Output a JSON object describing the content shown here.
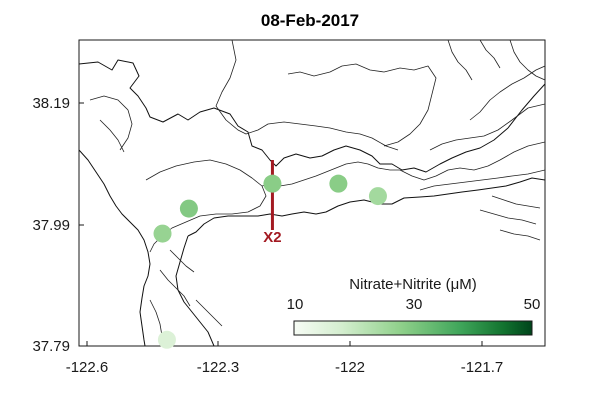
{
  "title": "08-Feb-2017",
  "x_axis": {
    "ticks": [
      "-122.6",
      "-122.3",
      "-122",
      "-121.7"
    ]
  },
  "y_axis": {
    "ticks": [
      "38.19",
      "37.99",
      "37.79"
    ]
  },
  "x2_marker": {
    "label": "X2",
    "lon": -122.19,
    "color": "#a31a22"
  },
  "colorbar": {
    "title": "Nitrate+Nitrite (μM)",
    "min": 5,
    "max": 50,
    "ticks": [
      "10",
      "30",
      "50"
    ],
    "color_low": "#f7fcf5",
    "color_high": "#00441b"
  },
  "chart_data": {
    "type": "scatter",
    "title": "08-Feb-2017",
    "xlabel": "",
    "ylabel": "",
    "xlim": [
      -122.63,
      -121.57
    ],
    "ylim": [
      37.79,
      38.28
    ],
    "series": [
      {
        "points": [
          {
            "lon": -122.43,
            "lat": 37.8,
            "value": 12
          },
          {
            "lon": -122.44,
            "lat": 37.97,
            "value": 24
          },
          {
            "lon": -122.38,
            "lat": 38.01,
            "value": 27
          },
          {
            "lon": -122.19,
            "lat": 38.05,
            "value": 26
          },
          {
            "lon": -122.04,
            "lat": 38.05,
            "value": 26
          },
          {
            "lon": -121.95,
            "lat": 38.03,
            "value": 22
          }
        ]
      }
    ]
  }
}
